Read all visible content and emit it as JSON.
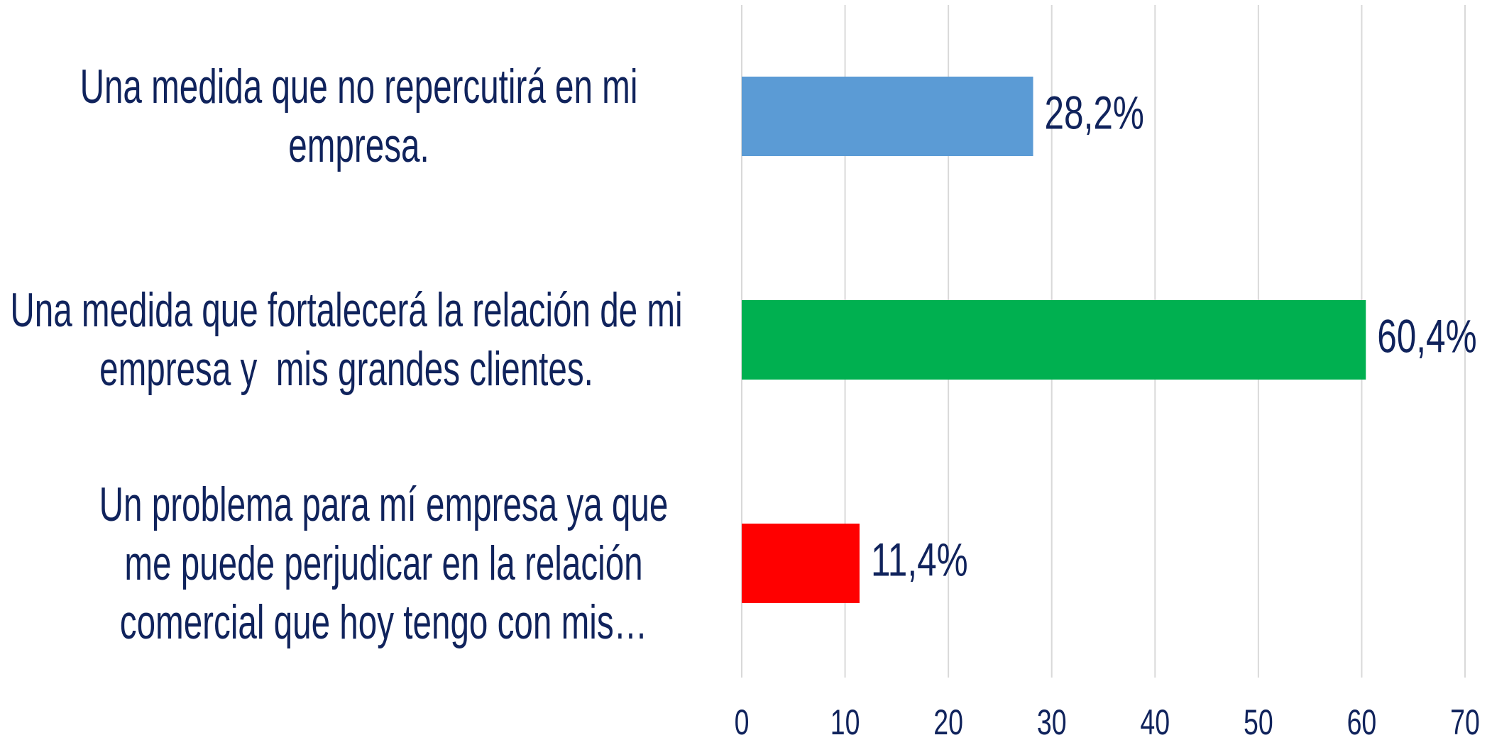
{
  "chart_data": {
    "type": "barh",
    "categories": [
      "Una medida que no repercutirá en mi empresa.",
      "Una medida que fortalecerá la relación de mi empresa y  mis grandes clientes.",
      "Un problema para mí empresa ya que me puede perjudicar en la relación comercial que hoy tengo con mis…"
    ],
    "values": [
      28.2,
      60.4,
      11.4
    ],
    "value_labels": [
      "28,2%",
      "60,4%",
      "11,4%"
    ],
    "colors": [
      "#5b9bd5",
      "#00b050",
      "#ff0000"
    ],
    "xlim": [
      0,
      70
    ],
    "xticks": [
      0,
      10,
      20,
      30,
      40,
      50,
      60,
      70
    ],
    "grid": true
  }
}
